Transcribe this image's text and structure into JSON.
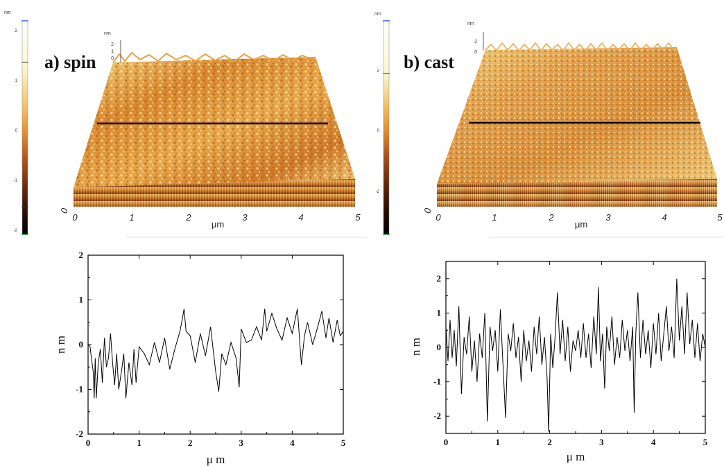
{
  "panels": [
    {
      "label": "a) spin",
      "colorbar": {
        "unit": "nm",
        "ticks": [
          "2",
          "1",
          "0",
          "-1",
          "-2"
        ]
      },
      "surface": {
        "z_unit": "nm",
        "z_ticks": [
          "2",
          "1",
          "0"
        ],
        "x_ticks": [
          "0",
          "1",
          "2",
          "3",
          "4",
          "5"
        ],
        "x_unit": "μm",
        "corner_tick": "0"
      }
    },
    {
      "label": "b) cast",
      "colorbar": {
        "unit": "nm",
        "ticks": [
          "2",
          "0",
          "-2"
        ]
      },
      "surface": {
        "z_unit": "nm",
        "z_ticks": [
          "2",
          "0"
        ],
        "x_ticks": [
          "0",
          "1",
          "2",
          "3",
          "4",
          "5"
        ],
        "x_unit": "μm",
        "corner_tick": "0"
      }
    }
  ],
  "chart_data": [
    {
      "type": "line",
      "xlabel": "μ m",
      "ylabel": "n m",
      "xlim": [
        0,
        5
      ],
      "ylim": [
        -2,
        2
      ],
      "xticks": [
        "0",
        "1",
        "2",
        "3",
        "4",
        "5"
      ],
      "yticks": [
        "2",
        "1",
        "0",
        "-1",
        "-2"
      ],
      "series": [
        {
          "values": [
            [
              0.0,
              0.0
            ],
            [
              0.04,
              -0.05
            ],
            [
              0.06,
              -0.25
            ],
            [
              0.1,
              -0.6
            ],
            [
              0.12,
              -1.2
            ],
            [
              0.14,
              -0.3
            ],
            [
              0.16,
              -1.2
            ],
            [
              0.2,
              -0.4
            ],
            [
              0.24,
              -0.1
            ],
            [
              0.28,
              -0.85
            ],
            [
              0.32,
              0.15
            ],
            [
              0.36,
              -0.5
            ],
            [
              0.4,
              -0.3
            ],
            [
              0.44,
              0.25
            ],
            [
              0.48,
              -0.4
            ],
            [
              0.52,
              -0.9
            ],
            [
              0.56,
              -0.2
            ],
            [
              0.6,
              -1.0
            ],
            [
              0.66,
              -0.55
            ],
            [
              0.7,
              -0.2
            ],
            [
              0.74,
              -1.2
            ],
            [
              0.8,
              -0.4
            ],
            [
              0.86,
              -0.9
            ],
            [
              0.9,
              -0.1
            ],
            [
              0.94,
              -0.85
            ],
            [
              1.0,
              -0.05
            ],
            [
              1.1,
              -0.2
            ],
            [
              1.2,
              -0.45
            ],
            [
              1.3,
              0.05
            ],
            [
              1.4,
              -0.4
            ],
            [
              1.5,
              0.15
            ],
            [
              1.6,
              -0.55
            ],
            [
              1.7,
              -0.1
            ],
            [
              1.8,
              0.3
            ],
            [
              1.85,
              0.6
            ],
            [
              1.88,
              0.8
            ],
            [
              1.92,
              0.3
            ],
            [
              2.0,
              0.2
            ],
            [
              2.1,
              -0.4
            ],
            [
              2.2,
              0.25
            ],
            [
              2.3,
              -0.25
            ],
            [
              2.4,
              0.4
            ],
            [
              2.5,
              -0.6
            ],
            [
              2.56,
              -1.05
            ],
            [
              2.62,
              -0.2
            ],
            [
              2.7,
              -0.45
            ],
            [
              2.8,
              0.05
            ],
            [
              2.9,
              -0.3
            ],
            [
              2.96,
              -0.95
            ],
            [
              3.0,
              0.35
            ],
            [
              3.1,
              0.05
            ],
            [
              3.2,
              0.1
            ],
            [
              3.3,
              0.4
            ],
            [
              3.4,
              0.1
            ],
            [
              3.46,
              0.8
            ],
            [
              3.5,
              0.3
            ],
            [
              3.6,
              0.7
            ],
            [
              3.7,
              0.35
            ],
            [
              3.8,
              0.1
            ],
            [
              3.9,
              0.6
            ],
            [
              4.0,
              0.25
            ],
            [
              4.1,
              0.8
            ],
            [
              4.18,
              -0.45
            ],
            [
              4.24,
              0.2
            ],
            [
              4.3,
              0.5
            ],
            [
              4.4,
              0.0
            ],
            [
              4.5,
              0.4
            ],
            [
              4.58,
              0.75
            ],
            [
              4.66,
              0.15
            ],
            [
              4.72,
              0.6
            ],
            [
              4.8,
              0.05
            ],
            [
              4.88,
              0.55
            ],
            [
              4.94,
              0.2
            ],
            [
              5.0,
              0.3
            ]
          ]
        }
      ]
    },
    {
      "type": "line",
      "xlabel": "μ m",
      "ylabel": "n m",
      "xlim": [
        0,
        5
      ],
      "ylim": [
        -2.5,
        2.5
      ],
      "xticks": [
        "0",
        "1",
        "2",
        "3",
        "4",
        "5"
      ],
      "yticks": [
        "2",
        "1",
        "0",
        "-1",
        "-2"
      ],
      "series": [
        {
          "values": [
            [
              0.0,
              0.6
            ],
            [
              0.04,
              -0.4
            ],
            [
              0.08,
              0.8
            ],
            [
              0.12,
              -0.3
            ],
            [
              0.16,
              0.5
            ],
            [
              0.2,
              -0.55
            ],
            [
              0.25,
              1.2
            ],
            [
              0.3,
              -1.35
            ],
            [
              0.35,
              0.3
            ],
            [
              0.4,
              -0.2
            ],
            [
              0.45,
              0.9
            ],
            [
              0.5,
              -0.7
            ],
            [
              0.55,
              0.2
            ],
            [
              0.6,
              -1.0
            ],
            [
              0.65,
              0.4
            ],
            [
              0.7,
              -0.3
            ],
            [
              0.75,
              1.0
            ],
            [
              0.8,
              -2.15
            ],
            [
              0.85,
              0.6
            ],
            [
              0.9,
              -0.1
            ],
            [
              0.95,
              0.5
            ],
            [
              1.0,
              -0.7
            ],
            [
              1.05,
              1.1
            ],
            [
              1.1,
              -0.5
            ],
            [
              1.15,
              -2.05
            ],
            [
              1.2,
              0.4
            ],
            [
              1.25,
              -0.1
            ],
            [
              1.3,
              0.7
            ],
            [
              1.35,
              -0.3
            ],
            [
              1.4,
              0.3
            ],
            [
              1.45,
              -1.0
            ],
            [
              1.5,
              0.5
            ],
            [
              1.55,
              -0.4
            ],
            [
              1.6,
              0.2
            ],
            [
              1.65,
              -0.7
            ],
            [
              1.7,
              0.6
            ],
            [
              1.75,
              -0.2
            ],
            [
              1.8,
              0.9
            ],
            [
              1.85,
              -0.5
            ],
            [
              1.9,
              0.3
            ],
            [
              1.95,
              -0.9
            ],
            [
              1.98,
              -2.45
            ],
            [
              2.02,
              0.4
            ],
            [
              2.06,
              -0.6
            ],
            [
              2.1,
              0.2
            ],
            [
              2.15,
              1.6
            ],
            [
              2.2,
              -0.2
            ],
            [
              2.25,
              0.8
            ],
            [
              2.3,
              -0.4
            ],
            [
              2.35,
              0.6
            ],
            [
              2.4,
              -0.7
            ],
            [
              2.45,
              0.2
            ],
            [
              2.5,
              -0.1
            ],
            [
              2.55,
              0.5
            ],
            [
              2.6,
              -0.3
            ],
            [
              2.65,
              0.7
            ],
            [
              2.7,
              -0.3
            ],
            [
              2.75,
              0.4
            ],
            [
              2.8,
              -0.6
            ],
            [
              2.85,
              0.9
            ],
            [
              2.9,
              -0.2
            ],
            [
              2.94,
              1.75
            ],
            [
              2.98,
              -0.4
            ],
            [
              3.02,
              0.4
            ],
            [
              3.06,
              -1.2
            ],
            [
              3.1,
              0.6
            ],
            [
              3.15,
              -0.1
            ],
            [
              3.2,
              0.9
            ],
            [
              3.25,
              -0.5
            ],
            [
              3.3,
              0.3
            ],
            [
              3.35,
              -0.3
            ],
            [
              3.4,
              0.8
            ],
            [
              3.45,
              -0.1
            ],
            [
              3.5,
              0.5
            ],
            [
              3.55,
              -0.4
            ],
            [
              3.6,
              0.6
            ],
            [
              3.63,
              -1.9
            ],
            [
              3.66,
              0.4
            ],
            [
              3.7,
              1.6
            ],
            [
              3.75,
              -0.3
            ],
            [
              3.8,
              0.8
            ],
            [
              3.85,
              -0.2
            ],
            [
              3.9,
              0.5
            ],
            [
              3.95,
              -0.6
            ],
            [
              4.0,
              0.7
            ],
            [
              4.05,
              -0.2
            ],
            [
              4.1,
              1.0
            ],
            [
              4.15,
              -0.4
            ],
            [
              4.2,
              0.4
            ],
            [
              4.25,
              1.2
            ],
            [
              4.3,
              -0.1
            ],
            [
              4.35,
              0.6
            ],
            [
              4.4,
              -0.3
            ],
            [
              4.45,
              2.0
            ],
            [
              4.5,
              0.2
            ],
            [
              4.55,
              1.2
            ],
            [
              4.6,
              -0.2
            ],
            [
              4.65,
              1.6
            ],
            [
              4.7,
              0.1
            ],
            [
              4.75,
              0.8
            ],
            [
              4.8,
              -0.3
            ],
            [
              4.85,
              0.7
            ],
            [
              4.9,
              -0.4
            ],
            [
              4.95,
              0.4
            ],
            [
              5.0,
              0.0
            ]
          ]
        }
      ]
    }
  ]
}
